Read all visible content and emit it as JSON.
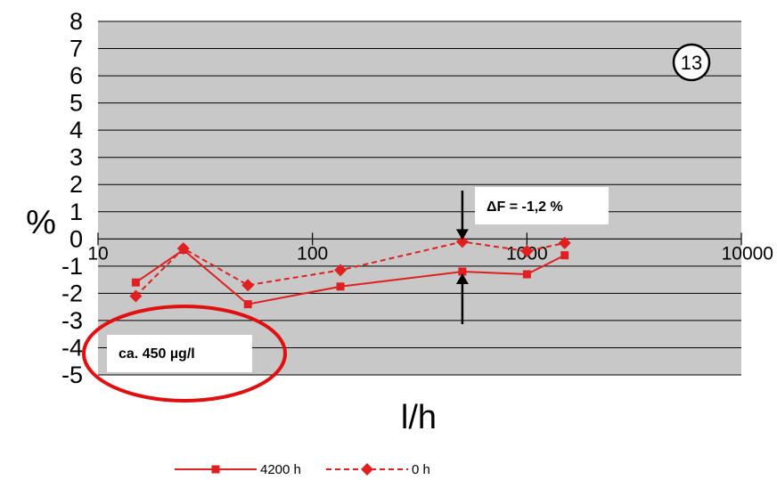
{
  "chart_data": {
    "type": "line",
    "xlabel": "l/h",
    "ylabel": "%",
    "x_scale": "log",
    "xlim": [
      10,
      10000
    ],
    "ylim": [
      -5,
      8
    ],
    "x_ticks": [
      "10",
      "100",
      "1000",
      "10000"
    ],
    "y_ticks": [
      "8",
      "7",
      "6",
      "5",
      "4",
      "3",
      "2",
      "1",
      "0",
      "-1",
      "-2",
      "-3",
      "-4",
      "-5"
    ],
    "grid": "horizontal",
    "legend_position": "bottom",
    "series": [
      {
        "name": "4200 h",
        "color": "#e02020",
        "line": "solid",
        "marker": "square",
        "x": [
          15,
          25,
          50,
          135,
          500,
          1000,
          1500
        ],
        "y": [
          -1.6,
          -0.4,
          -2.4,
          -1.75,
          -1.2,
          -1.3,
          -0.6
        ]
      },
      {
        "name": "0 h",
        "color": "#e02020",
        "line": "dashed",
        "marker": "diamond",
        "x": [
          15,
          25,
          50,
          135,
          500,
          1000,
          1500
        ],
        "y": [
          -2.1,
          -0.35,
          -1.7,
          -1.15,
          -0.1,
          -0.45,
          -0.15
        ]
      }
    ],
    "annotations": {
      "badge": "13",
      "delta_label": "ΔF = -1,2 %",
      "delta_x": 500,
      "delta_top": -0.1,
      "delta_bottom": -1.2,
      "concentration_label": "ca. 450 µg/l"
    }
  }
}
